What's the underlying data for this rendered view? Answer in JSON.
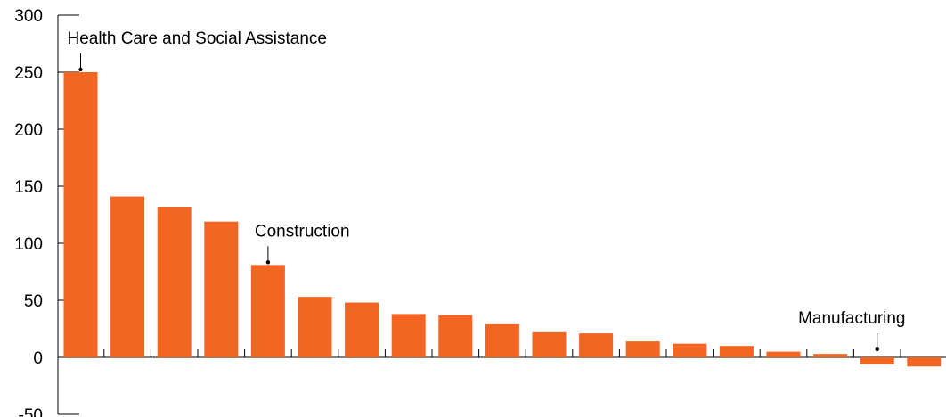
{
  "chart_data": {
    "type": "bar",
    "ylim": [
      -50,
      300
    ],
    "yticks": [
      300,
      250,
      200,
      150,
      100,
      50,
      0,
      -50
    ],
    "ytick_labels": [
      "300",
      "250",
      "200",
      "150",
      "100",
      "50",
      "0",
      "-50"
    ],
    "values": [
      250,
      141,
      132,
      119,
      81,
      53,
      48,
      38,
      37,
      29,
      22,
      21,
      14,
      12,
      10,
      5,
      3,
      -6,
      -8
    ],
    "bar_color": "#f26522",
    "annotations": [
      {
        "label": "Health Care and Social Assistance",
        "bar_index": 0
      },
      {
        "label": "Construction",
        "bar_index": 4
      },
      {
        "label": "Manufacturing",
        "bar_index": 17
      }
    ],
    "grid": false,
    "legend": "none"
  }
}
